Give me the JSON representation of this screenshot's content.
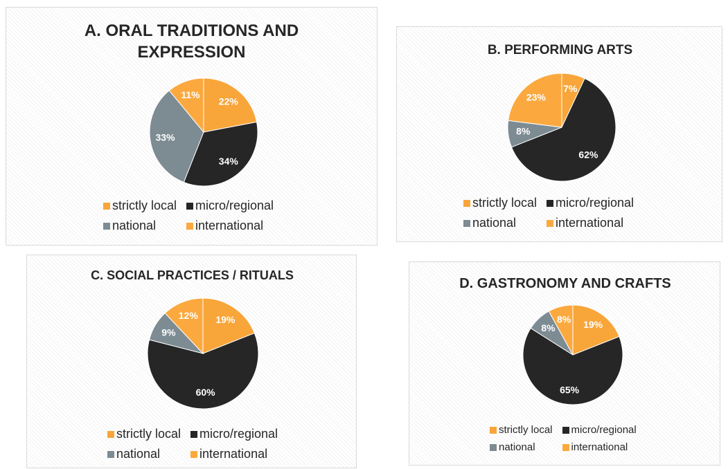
{
  "chart_data": [
    {
      "type": "pie",
      "title": "A. ORAL TRADITIONS AND EXPRESSION",
      "categories": [
        "strictly local",
        "micro/regional",
        "national",
        "international"
      ],
      "values": [
        22,
        34,
        33,
        11
      ],
      "value_labels": [
        "22%",
        "34%",
        "33%",
        "11%"
      ],
      "colors": [
        "#f8a53a",
        "#262626",
        "#7d8b93",
        "#fba93f"
      ]
    },
    {
      "type": "pie",
      "title": "B. PERFORMING ARTS",
      "categories": [
        "strictly local",
        "micro/regional",
        "national",
        "international"
      ],
      "values": [
        7,
        62,
        8,
        23
      ],
      "value_labels": [
        "7%",
        "62%",
        "8%",
        "23%"
      ],
      "colors": [
        "#f8a53a",
        "#262626",
        "#7d8b93",
        "#fba93f"
      ]
    },
    {
      "type": "pie",
      "title": "C. SOCIAL PRACTICES / RITUALS",
      "categories": [
        "strictly local",
        "micro/regional",
        "national",
        "international"
      ],
      "values": [
        19,
        60,
        9,
        12
      ],
      "value_labels": [
        "19%",
        "60%",
        "9%",
        "12%"
      ],
      "colors": [
        "#f8a53a",
        "#262626",
        "#7d8b93",
        "#fba93f"
      ]
    },
    {
      "type": "pie",
      "title": "D. GASTRONOMY AND CRAFTS",
      "categories": [
        "strictly local",
        "micro/regional",
        "national",
        "international"
      ],
      "values": [
        19,
        65,
        8,
        8
      ],
      "value_labels": [
        "19%",
        "65%",
        "8%",
        "8%"
      ],
      "colors": [
        "#f8a53a",
        "#262626",
        "#7d8b93",
        "#fba93f"
      ]
    }
  ]
}
